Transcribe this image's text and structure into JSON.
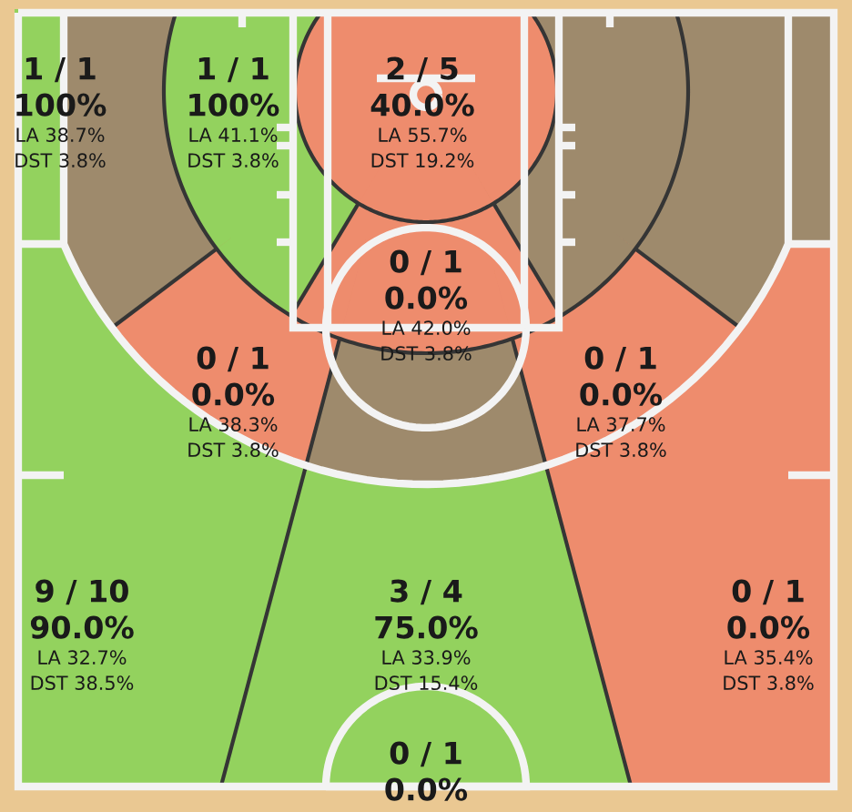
{
  "chart_data": {
    "type": "other",
    "categories": [
      null,
      null,
      null,
      null,
      null,
      null,
      null,
      null,
      null,
      null,
      null,
      null,
      null,
      null,
      null
    ],
    "colors": [
      "#93d25e",
      "#93d25e",
      "#ee8c6d",
      "#9e8a6c",
      "#9e8a6c",
      "#9e8a6c",
      "#ee8c6d",
      "#9e8a6c",
      "#ee8c6d",
      "#9e8a6c",
      "#ee8c6d",
      "#93d25e",
      "#93d25e",
      "#ee8c6d",
      null
    ],
    "series": [
      {
        "values": [
          100,
          100,
          40.0,
          null,
          null,
          null,
          0.0,
          null,
          0.0,
          null,
          0.0,
          90.0,
          75.0,
          0.0,
          0.0
        ],
        "value_labels": [
          "100%",
          "100%",
          "40.0%",
          null,
          null,
          null,
          "0.0%",
          null,
          "0.0%",
          null,
          "0.0%",
          "90.0%",
          "75.0%",
          "0.0%",
          "0.0%"
        ]
      }
    ],
    "annotations": [
      "1 / 1",
      "LA 38.7%",
      "DST 3.8%",
      "1 / 1",
      "LA 41.1%",
      "DST 3.8%",
      "2 / 5",
      "LA 55.7%",
      "DST 19.2%",
      "0 / 1",
      "LA 42.0%",
      "DST 3.8%",
      "0 / 1",
      "LA 38.3%",
      "DST 3.8%",
      "0 / 1",
      "LA 37.7%",
      "DST 3.8%",
      "9 / 10",
      "LA 32.7%",
      "DST 38.5%",
      "3 / 4",
      "LA 33.9%",
      "DST 15.4%",
      "0 / 1",
      "LA 35.4%",
      "DST 3.8%",
      "0 / 1"
    ]
  }
}
